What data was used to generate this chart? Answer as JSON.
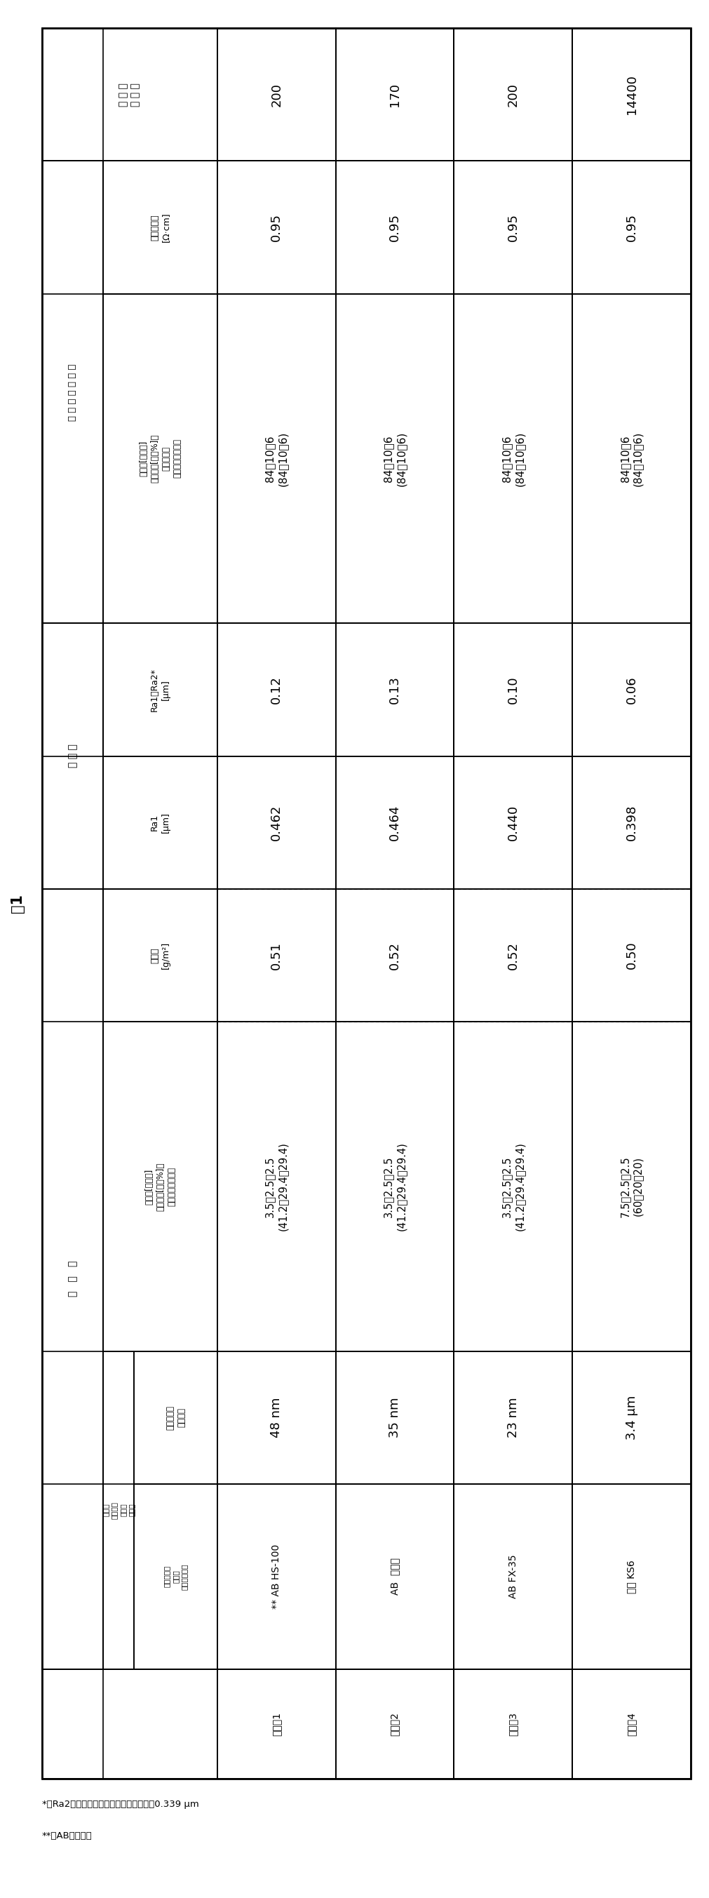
{
  "title": "表1",
  "rows": [
    "制造例1",
    "制造例2",
    "制造例3",
    "制造例4"
  ],
  "conductor_names": [
    "** AB HS-100",
    "AB  粉状品",
    "AB FX-35",
    "石墨 KS6"
  ],
  "primary_particle_sizes": [
    "48 nm",
    "35 nm",
    "23 nm",
    "3.4 μm"
  ],
  "additive_amounts_coat": [
    "3.5：2.5：2.5\n(41.2：29.4：29.4)",
    "3.5：2.5：2.5\n(41.2：29.4：29.4)",
    "3.5：2.5：2.5\n(41.2：29.4：29.4)",
    "7.5：2.5：2.5\n(60：20：20)"
  ],
  "coating_amounts": [
    "0.51",
    "0.52",
    "0.52",
    "0.50"
  ],
  "ra1_values": [
    "0.462",
    "0.464",
    "0.440",
    "0.398"
  ],
  "ra1_ra2_values": [
    "0.12",
    "0.13",
    "0.10",
    "0.06"
  ],
  "active_material_ratios": [
    "84：10：6\n(84：10：6)",
    "84：10：6\n(84：10：6)",
    "84：10：6\n(84：10：6)",
    "84：10：6\n(84：10：6)"
  ],
  "volume_resistivity": [
    "0.95",
    "0.95",
    "0.95",
    "0.95"
  ],
  "penetration_resistance": [
    "200",
    "170",
    "200",
    "14400"
  ],
  "footnote1": "*）Ra2：集電体（銘箔）的表面粗糙度＝0.339 μm",
  "footnote2": "**）AB：乙炔黑"
}
